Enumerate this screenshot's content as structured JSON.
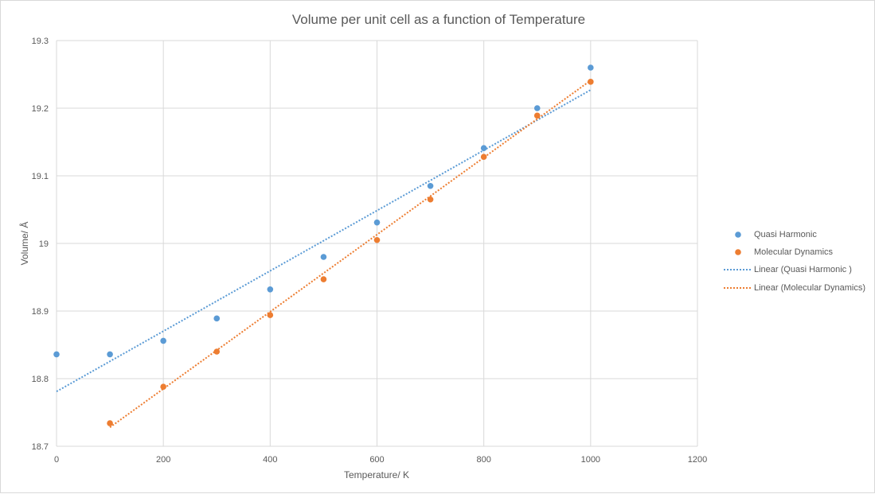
{
  "chart_data": {
    "type": "scatter",
    "title": "Volume per unit cell as a function of Temperature",
    "xlabel": "Temperature/  K",
    "ylabel": "Volume/ Å",
    "xlim": [
      0,
      1200
    ],
    "ylim": [
      18.7,
      19.3
    ],
    "xticks": [
      0,
      200,
      400,
      600,
      800,
      1000,
      1200
    ],
    "yticks": [
      "18.7",
      "18.8",
      "18.9",
      "19",
      "19.1",
      "19.2",
      "19.3"
    ],
    "grid": true,
    "legend_position": "right",
    "series": [
      {
        "name": "Quasi Harmonic",
        "color": "#5b9bd5",
        "x": [
          0,
          100,
          200,
          300,
          400,
          500,
          600,
          700,
          800,
          900,
          1000
        ],
        "y": [
          18.836,
          18.836,
          18.856,
          18.889,
          18.932,
          18.98,
          19.031,
          19.085,
          19.141,
          19.2,
          19.26
        ]
      },
      {
        "name": "Molecular Dynamics",
        "color": "#ed7d31",
        "x": [
          100,
          200,
          300,
          400,
          500,
          600,
          700,
          800,
          900,
          1000
        ],
        "y": [
          18.734,
          18.788,
          18.84,
          18.894,
          18.947,
          19.005,
          19.065,
          19.128,
          19.189,
          19.239
        ]
      }
    ],
    "trendlines": [
      {
        "name": "Linear (Quasi Harmonic )",
        "color": "#5b9bd5",
        "x": [
          0,
          1000
        ],
        "y": [
          18.781,
          19.227
        ]
      },
      {
        "name": "Linear (Molecular Dynamics)",
        "color": "#ed7d31",
        "x": [
          100,
          1000
        ],
        "y": [
          18.728,
          19.241
        ]
      }
    ]
  }
}
